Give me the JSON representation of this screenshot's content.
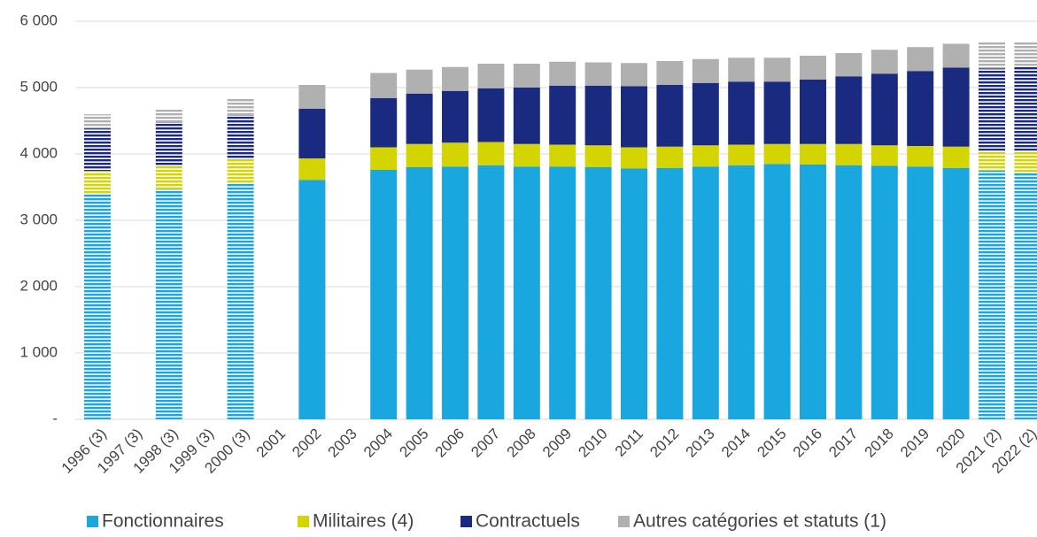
{
  "chart_data": {
    "type": "bar",
    "stacked": true,
    "categories": [
      "1996 (3)",
      "1997 (3)",
      "1998 (3)",
      "1999 (3)",
      "2000 (3)",
      "2001",
      "2002",
      "2003",
      "2004",
      "2005",
      "2006",
      "2007",
      "2008",
      "2009",
      "2010",
      "2011",
      "2012",
      "2013",
      "2014",
      "2015",
      "2016",
      "2017",
      "2018",
      "2019",
      "2020",
      "2021 (2)",
      "2022 (2)"
    ],
    "hatched": [
      true,
      false,
      true,
      false,
      true,
      false,
      false,
      false,
      false,
      false,
      false,
      false,
      false,
      false,
      false,
      false,
      false,
      false,
      false,
      false,
      false,
      false,
      false,
      false,
      false,
      true,
      true
    ],
    "series": [
      {
        "name": "Fonctionnaires",
        "color": "#1aa7e0",
        "values": [
          3410,
          null,
          3470,
          null,
          3550,
          null,
          3610,
          null,
          3760,
          3800,
          3810,
          3830,
          3810,
          3810,
          3800,
          3780,
          3790,
          3810,
          3830,
          3850,
          3840,
          3830,
          3820,
          3810,
          3790,
          3750,
          3730
        ]
      },
      {
        "name": "Militaires (4)",
        "color": "#d4d400",
        "values": [
          335,
          null,
          343,
          null,
          370,
          null,
          323,
          null,
          340,
          350,
          360,
          350,
          340,
          330,
          330,
          320,
          320,
          320,
          310,
          300,
          310,
          320,
          310,
          310,
          320,
          300,
          320
        ]
      },
      {
        "name": "Contractuels",
        "color": "#1a2a80",
        "values": [
          640,
          null,
          667,
          null,
          667,
          null,
          747,
          null,
          740,
          760,
          780,
          810,
          850,
          890,
          900,
          920,
          930,
          940,
          950,
          940,
          970,
          1020,
          1080,
          1130,
          1190,
          1240,
          1270
        ]
      },
      {
        "name": "Autres catégories et statuts (1)",
        "color": "#b0b0b0",
        "values": [
          213,
          null,
          200,
          null,
          253,
          null,
          360,
          null,
          380,
          360,
          360,
          370,
          360,
          360,
          350,
          350,
          360,
          360,
          360,
          360,
          360,
          350,
          360,
          360,
          360,
          390,
          370
        ]
      }
    ],
    "ylim": [
      0,
      6000
    ],
    "yticks": [
      {
        "value": 0,
        "label": "-"
      },
      {
        "value": 1000,
        "label": "1 000"
      },
      {
        "value": 2000,
        "label": "2 000"
      },
      {
        "value": 3000,
        "label": "3 000"
      },
      {
        "value": 4000,
        "label": "4 000"
      },
      {
        "value": 5000,
        "label": "5 000"
      },
      {
        "value": 6000,
        "label": "6 000"
      }
    ],
    "grid": true
  }
}
